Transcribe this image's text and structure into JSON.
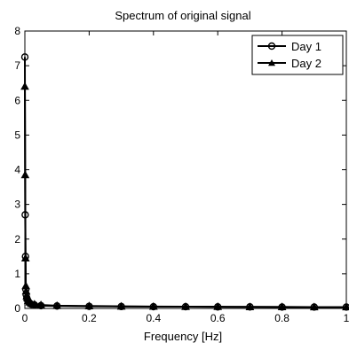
{
  "chart_data": {
    "type": "line",
    "title": "Spectrum of original signal",
    "xlabel": "Frequency [Hz]",
    "ylabel": "",
    "xlim": [
      0,
      1
    ],
    "ylim": [
      0,
      8
    ],
    "x_ticks": [
      0,
      0.2,
      0.4,
      0.6,
      0.8,
      1
    ],
    "x_tick_labels": [
      "0",
      "0.2",
      "0.4",
      "0.6",
      "0.8",
      "1"
    ],
    "y_ticks": [
      0,
      1,
      2,
      3,
      4,
      5,
      6,
      7,
      8
    ],
    "y_tick_labels": [
      "0",
      "1",
      "2",
      "3",
      "4",
      "5",
      "6",
      "7",
      "8"
    ],
    "grid": false,
    "legend_position": "top-right",
    "series": [
      {
        "name": "Day 1",
        "marker": "circle",
        "color": "#000000",
        "x": [
          0,
          0.001,
          0.002,
          0.003,
          0.004,
          0.006,
          0.008,
          0.01,
          0.015,
          0.02,
          0.03,
          0.05,
          0.1,
          0.2,
          0.3,
          0.4,
          0.5,
          0.6,
          0.7,
          0.8,
          0.9,
          1.0
        ],
        "y": [
          7.25,
          2.7,
          1.5,
          0.55,
          0.4,
          0.3,
          0.25,
          0.2,
          0.15,
          0.12,
          0.1,
          0.08,
          0.07,
          0.06,
          0.055,
          0.05,
          0.05,
          0.045,
          0.045,
          0.04,
          0.04,
          0.04
        ]
      },
      {
        "name": "Day 2",
        "marker": "triangle",
        "color": "#000000",
        "x": [
          0,
          0.001,
          0.002,
          0.003,
          0.004,
          0.006,
          0.008,
          0.01,
          0.015,
          0.02,
          0.03,
          0.05,
          0.1,
          0.2,
          0.3,
          0.4,
          0.5,
          0.6,
          0.7,
          0.8,
          0.9,
          1.0
        ],
        "y": [
          6.4,
          3.85,
          1.45,
          0.65,
          0.5,
          0.35,
          0.3,
          0.22,
          0.18,
          0.14,
          0.12,
          0.1,
          0.08,
          0.07,
          0.06,
          0.055,
          0.05,
          0.05,
          0.045,
          0.045,
          0.04,
          0.04
        ]
      }
    ]
  }
}
